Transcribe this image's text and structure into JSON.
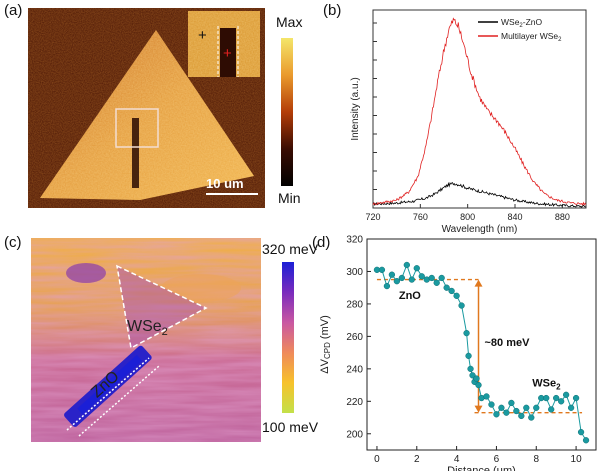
{
  "panels": {
    "a": {
      "label": "(a)",
      "colorbar": {
        "max": "Max",
        "min": "Min",
        "colors": [
          "#f4e66a",
          "#ea9a2d",
          "#b33d08",
          "#3a0c02",
          "#000000"
        ]
      },
      "scalebar": "10 um"
    },
    "b": {
      "label": "(b)",
      "chart_data": {
        "type": "line",
        "xlabel": "Wavelength (nm)",
        "ylabel": "Intensity (a.u.)",
        "xlim": [
          720,
          900
        ],
        "xticks": [
          720,
          760,
          800,
          840,
          880
        ],
        "y_tick_labels": false,
        "legend_position": "top-right",
        "series": [
          {
            "name": "WSe2-ZnO",
            "name_main": "WSe",
            "name_sub": "2",
            "name_rest": "-ZnO",
            "color": "#000000",
            "x": [
              720,
              740,
              755,
              765,
              772,
              778,
              783,
              788,
              793,
              800,
              810,
              820,
              830,
              840,
              850,
              860,
              875,
              890,
              900
            ],
            "y": [
              0.02,
              0.025,
              0.035,
              0.05,
              0.07,
              0.095,
              0.115,
              0.125,
              0.118,
              0.1,
              0.085,
              0.07,
              0.055,
              0.04,
              0.03,
              0.022,
              0.015,
              0.01,
              0.008
            ]
          },
          {
            "name": "Multilayer WSe2",
            "name_main": "Multilayer WSe",
            "name_sub": "2",
            "name_rest": "",
            "color": "#e02020",
            "x": [
              720,
              740,
              750,
              758,
              765,
              770,
              775,
              780,
              784,
              788,
              792,
              797,
              803,
              810,
              817,
              825,
              832,
              840,
              848,
              856,
              865,
              875,
              888,
              900
            ],
            "y": [
              0.02,
              0.04,
              0.08,
              0.16,
              0.32,
              0.48,
              0.65,
              0.8,
              0.9,
              0.95,
              0.92,
              0.82,
              0.68,
              0.56,
              0.49,
              0.44,
              0.38,
              0.3,
              0.21,
              0.13,
              0.07,
              0.04,
              0.025,
              0.02
            ]
          }
        ]
      }
    },
    "c": {
      "label": "(c)",
      "colorbar": {
        "max": "320 meV",
        "min": "100 meV",
        "colors": [
          "#1b1fd6",
          "#7a2bbd",
          "#c957a2",
          "#ef8a5b",
          "#f7c22b",
          "#c3e04a"
        ]
      },
      "zno_label": "ZnO",
      "wse2_main": "WSe",
      "wse2_sub": "2"
    },
    "d": {
      "label": "(d)",
      "chart_data": {
        "type": "scatter",
        "xlabel": "Distance (μm)",
        "ylabel_main": "ΔV",
        "ylabel_sub": "CPD",
        "ylabel_unit": " (mV)",
        "xlim": [
          -0.5,
          11
        ],
        "ylim": [
          190,
          320
        ],
        "xticks": [
          0,
          2,
          4,
          6,
          8,
          10
        ],
        "yticks": [
          200,
          220,
          240,
          260,
          280,
          300,
          320
        ],
        "color": "#1a9aa0",
        "x": [
          0,
          0.25,
          0.5,
          0.75,
          1.0,
          1.25,
          1.5,
          1.75,
          2.0,
          2.25,
          2.5,
          2.75,
          3.0,
          3.25,
          3.5,
          3.75,
          4.0,
          4.25,
          4.5,
          4.6,
          4.7,
          4.8,
          4.9,
          5.0,
          5.1,
          5.25,
          5.5,
          5.75,
          6.0,
          6.25,
          6.5,
          6.75,
          7.0,
          7.25,
          7.5,
          7.75,
          8.0,
          8.25,
          8.5,
          8.75,
          9.0,
          9.25,
          9.5,
          9.75,
          10.0,
          10.25,
          10.5
        ],
        "y": [
          301,
          301,
          291,
          298,
          294,
          296,
          304,
          295,
          302,
          297,
          295,
          296,
          293,
          296,
          290,
          288,
          285,
          279,
          262,
          248,
          240,
          236,
          232,
          234,
          230,
          222,
          223,
          218,
          212,
          216,
          213,
          219,
          214,
          211,
          216,
          210,
          216,
          222,
          222,
          215,
          222,
          220,
          224,
          216,
          222,
          201,
          196
        ],
        "annotations": {
          "zno": "ZnO",
          "wse2_main": "WSe",
          "wse2_sub": "2",
          "step": "~80 meV",
          "ref_high": 295,
          "ref_low": 213,
          "ref_color": "#e0781e"
        }
      }
    }
  }
}
